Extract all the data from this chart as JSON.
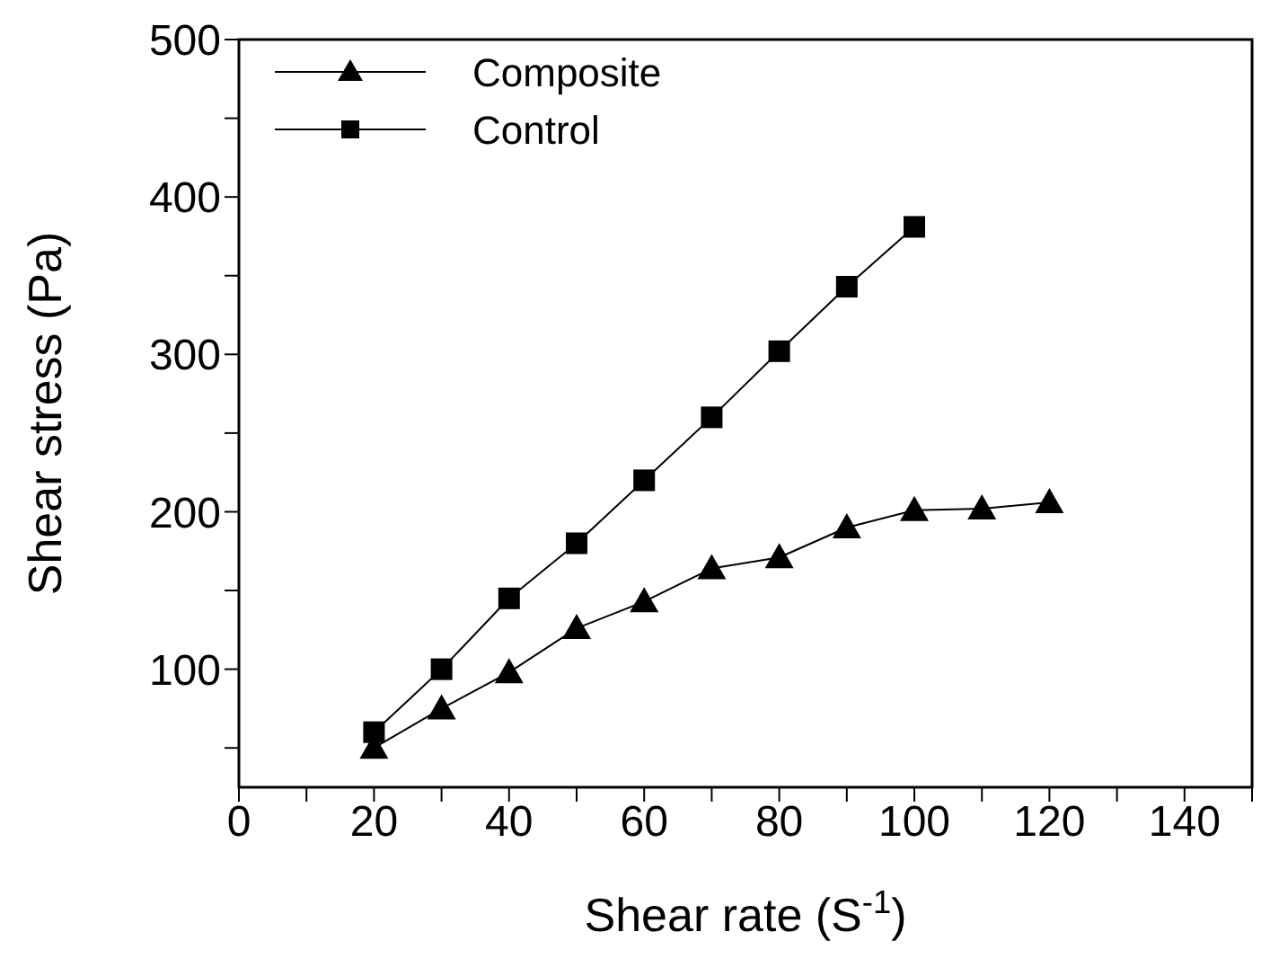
{
  "chart_data": {
    "type": "line",
    "xlabel": "Shear rate (S$^{-1}$)",
    "ylabel": "Shear stress (Pa)",
    "xlim": [
      0,
      150
    ],
    "xticks": [
      0,
      {
        "value": 10,
        "label": null
      },
      20,
      {
        "value": 30,
        "label": null
      },
      40,
      {
        "value": 50,
        "label": null
      },
      60,
      {
        "value": 70,
        "label": null
      },
      80,
      {
        "value": 90,
        "label": null
      },
      100,
      {
        "value": 110,
        "label": null
      },
      120,
      {
        "value": 130,
        "label": null
      },
      140,
      {
        "value": 150,
        "label": null
      }
    ],
    "ylim": [
      25,
      500
    ],
    "yticks": [
      {
        "value": 50,
        "label": null
      },
      100,
      {
        "value": 150,
        "label": null
      },
      200,
      {
        "value": 250,
        "label": null
      },
      300,
      {
        "value": 350,
        "label": null
      },
      400,
      {
        "value": 450,
        "label": null
      },
      500
    ],
    "grid": false,
    "legend": "top left",
    "line_style": "solid",
    "series": [
      {
        "name": "Composite",
        "color": "#000000",
        "marker": "triangle",
        "x": [
          20,
          30,
          40,
          50,
          60,
          70,
          80,
          90,
          100,
          110,
          120
        ],
        "values": [
          50,
          75,
          98,
          126,
          143,
          164,
          171,
          190,
          201,
          202,
          206
        ]
      },
      {
        "name": "Control",
        "color": "#000000",
        "marker": "square",
        "x": [
          20,
          30,
          40,
          50,
          60,
          70,
          80,
          90,
          100
        ],
        "values": [
          60,
          100,
          145,
          180,
          220,
          260,
          302,
          343,
          381
        ]
      }
    ]
  }
}
